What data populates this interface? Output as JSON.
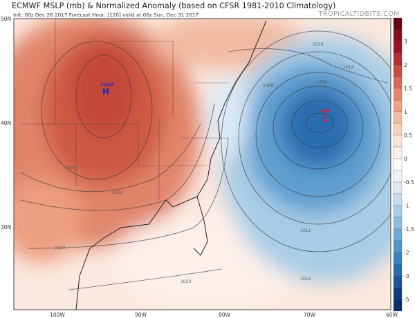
{
  "header": {
    "title": "ECMWF MSLP (mb) & Normalized Anomaly (based on CFSR 1981-2010 Climatology)",
    "subtitle": "Init: 00z Dec 26 2017   Forecast Hour: [120]   valid at 00z Sun, Dec 31 2017",
    "brand": "TROPICALTIDBITS.COM"
  },
  "map": {
    "lat_labels": [
      "50N",
      "40N",
      "30N"
    ],
    "lon_labels": [
      "100W",
      "90W",
      "80W",
      "70W",
      "60W"
    ],
    "high": {
      "value": "1041",
      "letter": "H",
      "color": "#1a2fb8"
    },
    "low": {
      "value": "980",
      "letter": "L",
      "color": "#d0203a"
    },
    "contour_labels": [
      "1036",
      "1032",
      "1024",
      "1020",
      "1016",
      "1012",
      "1008",
      "1004",
      "1016",
      "1012",
      "1016"
    ]
  },
  "colorbar": {
    "labels": [
      "3",
      "2",
      "1.5",
      "1",
      "0.5",
      "0",
      "-0.5",
      "-1",
      "-1.5",
      "-2",
      "-3",
      "-5"
    ],
    "colors": [
      "#67000d",
      "#8b0a1c",
      "#a50f26",
      "#bb2a32",
      "#cc4b3d",
      "#db6a52",
      "#e6876a",
      "#eea385",
      "#f4bca2",
      "#f8d2bd",
      "#fbe3d6",
      "#fdf2ec",
      "#ffffff",
      "#eef4fa",
      "#dceaf6",
      "#c6dbef",
      "#a9cde6",
      "#8dbee0",
      "#6dacd7",
      "#4f97cb",
      "#3a82bf",
      "#2a6cb0",
      "#1b549a",
      "#0d3d80",
      "#08306b"
    ]
  }
}
